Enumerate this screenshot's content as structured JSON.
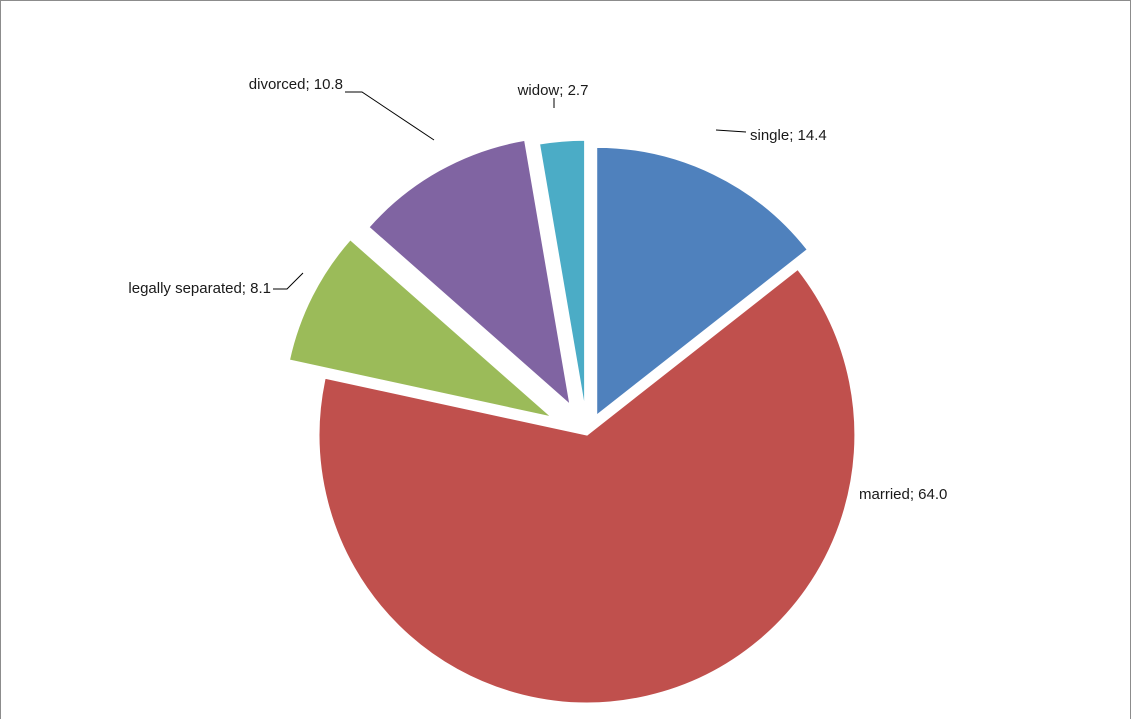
{
  "chart_data": {
    "type": "pie",
    "exploded": true,
    "start_angle": "12 o'clock, clockwise",
    "title": "",
    "label_format": "{name}; {value}",
    "categories": [
      "single",
      "married",
      "legally separated",
      "divorced",
      "widow"
    ],
    "values": [
      14.4,
      64.0,
      8.1,
      10.8,
      2.7
    ],
    "value_labels": [
      "14.4",
      "64.0",
      "8.1",
      "10.8",
      "2.7"
    ],
    "colors": [
      "#4f81bd",
      "#c0504d",
      "#9bbb59",
      "#8064a2",
      "#4bacc6"
    ],
    "legend": "none"
  }
}
